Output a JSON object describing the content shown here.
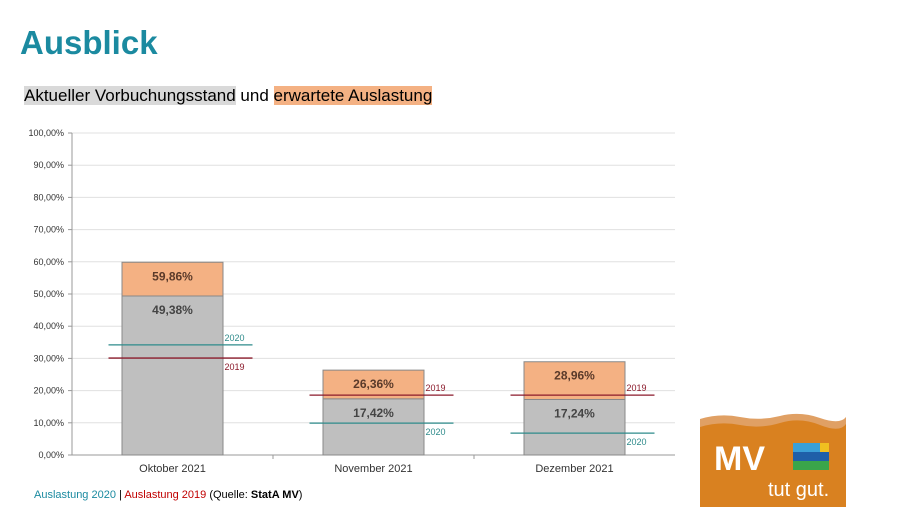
{
  "page": {
    "title": "Ausblick",
    "subtitle_part1": "Aktueller Vorbuchungsstand",
    "subtitle_part2": " und ",
    "subtitle_part3": "erwartete Auslastung"
  },
  "footer": {
    "part1": "Auslastung 2020",
    "sep": " | ",
    "part2": "Auslastung 2019",
    "part3": " (Quelle: ",
    "part4": "StatA MV",
    "part5": ")"
  },
  "logo": {
    "text1": "MV",
    "text2": "tut gut."
  },
  "colors": {
    "booked": "#bfbfbf",
    "expected": "#f4b183",
    "line2020": "#2e8b8b",
    "line2019": "#8b1a2b",
    "title": "#1b8aa0"
  },
  "chart_data": {
    "type": "bar",
    "stacked": true,
    "categories": [
      "Oktober 2021",
      "November 2021",
      "Dezember 2021"
    ],
    "series": [
      {
        "name": "Aktueller Vorbuchungsstand",
        "values": [
          49.38,
          17.42,
          17.24
        ],
        "labels": [
          "49,38%",
          "17,42%",
          "17,24%"
        ]
      },
      {
        "name": "erwartete Auslastung",
        "totals": [
          59.86,
          26.36,
          28.96
        ],
        "labels": [
          "59,86%",
          "26,36%",
          "28,96%"
        ]
      }
    ],
    "reference_lines": [
      {
        "name": "2020",
        "values": [
          34.2,
          9.9,
          6.8
        ]
      },
      {
        "name": "2019",
        "values": [
          30.1,
          18.6,
          18.6
        ]
      }
    ],
    "ylim": [
      0,
      100
    ],
    "yticks": [
      "0,00%",
      "10,00%",
      "20,00%",
      "30,00%",
      "40,00%",
      "50,00%",
      "60,00%",
      "70,00%",
      "80,00%",
      "90,00%",
      "100,00%"
    ],
    "grid": true
  }
}
